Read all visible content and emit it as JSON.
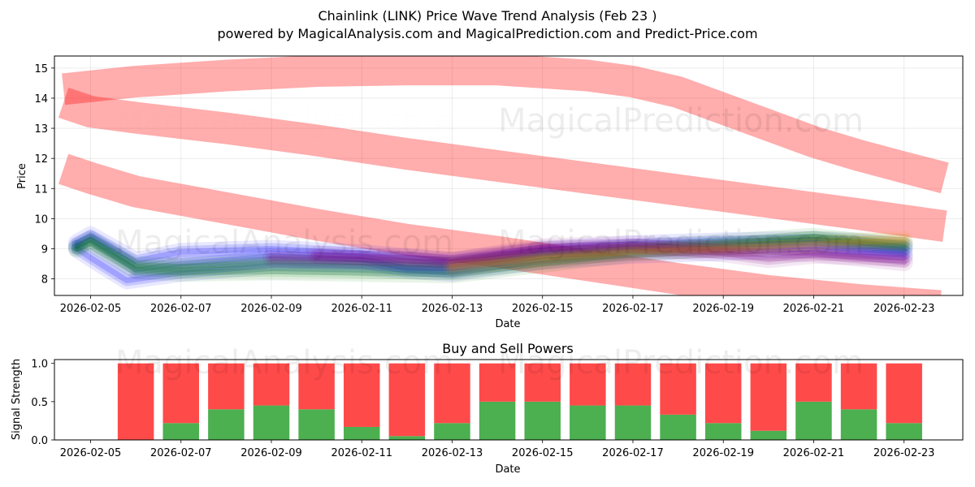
{
  "title": "Chainlink (LINK) Price Wave Trend Analysis (Feb 23 )",
  "subtitle": "powered by MagicalAnalysis.com and MagicalPrediction.com and Predict-Price.com",
  "watermarks": [
    "MagicalAnalysis.com",
    "MagicalPrediction.com"
  ],
  "chart_data": [
    {
      "type": "area",
      "xlabel": "Date",
      "ylabel": "Price",
      "ylim": [
        7.45,
        15.4
      ],
      "xlim": [
        -0.8,
        19.3
      ],
      "grid": true,
      "x_origin_date": "2026-02-05",
      "xticks": [
        {
          "x": 0,
          "label": "2026-02-05"
        },
        {
          "x": 2,
          "label": "2026-02-07"
        },
        {
          "x": 4,
          "label": "2026-02-09"
        },
        {
          "x": 6,
          "label": "2026-02-11"
        },
        {
          "x": 8,
          "label": "2026-02-13"
        },
        {
          "x": 10,
          "label": "2026-02-15"
        },
        {
          "x": 12,
          "label": "2026-02-17"
        },
        {
          "x": 14,
          "label": "2026-02-19"
        },
        {
          "x": 16,
          "label": "2026-02-21"
        },
        {
          "x": 18,
          "label": "2026-02-23"
        }
      ],
      "yticks": [
        8,
        9,
        10,
        11,
        12,
        13,
        14,
        15
      ],
      "bands": [
        {
          "name": "upper-wave",
          "color": "#ff0000",
          "width": 1.05,
          "points": [
            [
              -0.6,
              14.3
            ],
            [
              1,
              14.55
            ],
            [
              3,
              14.75
            ],
            [
              5,
              14.9
            ],
            [
              7,
              14.95
            ],
            [
              9,
              14.95
            ],
            [
              11,
              14.75
            ],
            [
              12,
              14.55
            ],
            [
              13,
              14.2
            ],
            [
              14,
              13.65
            ],
            [
              15,
              13.1
            ],
            [
              16,
              12.55
            ],
            [
              17,
              12.1
            ],
            [
              18,
              11.7
            ],
            [
              18.9,
              11.35
            ]
          ]
        },
        {
          "name": "mid-wave",
          "color": "#ff0000",
          "width": 1.05,
          "points": [
            [
              -0.6,
              13.85
            ],
            [
              0,
              13.55
            ],
            [
              1,
              13.35
            ],
            [
              3,
              13.0
            ],
            [
              5,
              12.6
            ],
            [
              7,
              12.15
            ],
            [
              9,
              11.75
            ],
            [
              11,
              11.35
            ],
            [
              13,
              10.95
            ],
            [
              15,
              10.55
            ],
            [
              17,
              10.15
            ],
            [
              18.9,
              9.75
            ]
          ]
        },
        {
          "name": "lower-wave",
          "color": "#ff0000",
          "width": 1.05,
          "points": [
            [
              -0.6,
              11.65
            ],
            [
              0,
              11.35
            ],
            [
              1,
              10.9
            ],
            [
              3,
              10.35
            ],
            [
              5,
              9.8
            ],
            [
              7,
              9.3
            ],
            [
              9,
              8.9
            ],
            [
              11,
              8.45
            ],
            [
              13,
              8.0
            ],
            [
              15,
              7.6
            ],
            [
              17,
              7.3
            ],
            [
              18.8,
              7.1
            ]
          ]
        }
      ],
      "series": [
        {
          "name": "blue-1",
          "color": "#0000ff",
          "values": [
            [
              -0.3,
              9.1
            ],
            [
              0,
              9.3
            ],
            [
              1,
              8.3
            ],
            [
              2,
              8.5
            ],
            [
              4,
              8.75
            ],
            [
              6,
              8.65
            ],
            [
              7,
              8.35
            ],
            [
              8,
              8.35
            ],
            [
              10,
              8.85
            ],
            [
              12,
              9.0
            ],
            [
              14,
              9.1
            ],
            [
              16,
              9.2
            ],
            [
              18,
              8.95
            ]
          ]
        },
        {
          "name": "blue-2",
          "color": "#0000ff",
          "values": [
            [
              -0.3,
              9.2
            ],
            [
              0,
              9.45
            ],
            [
              1,
              8.6
            ],
            [
              2,
              8.9
            ],
            [
              4,
              9.0
            ],
            [
              6,
              8.85
            ],
            [
              8,
              8.6
            ],
            [
              10,
              8.95
            ],
            [
              12,
              9.15
            ],
            [
              14,
              9.25
            ],
            [
              16,
              9.3
            ],
            [
              18,
              9.1
            ]
          ]
        },
        {
          "name": "blue-3",
          "color": "#0000ff",
          "values": [
            [
              -0.3,
              9.0
            ],
            [
              0,
              8.7
            ],
            [
              0.8,
              7.95
            ],
            [
              2,
              8.2
            ],
            [
              4,
              8.45
            ],
            [
              6,
              8.4
            ],
            [
              8,
              8.2
            ],
            [
              10,
              8.6
            ],
            [
              12,
              8.8
            ],
            [
              14,
              8.9
            ],
            [
              16,
              9.0
            ],
            [
              18,
              8.8
            ]
          ]
        },
        {
          "name": "green-1",
          "color": "#008000",
          "values": [
            [
              -0.3,
              9.0
            ],
            [
              0,
              9.2
            ],
            [
              1,
              8.3
            ],
            [
              2,
              8.2
            ],
            [
              4,
              8.25
            ],
            [
              6,
              8.2
            ],
            [
              8,
              8.15
            ],
            [
              10,
              8.5
            ],
            [
              12,
              8.85
            ],
            [
              14,
              9.05
            ],
            [
              16,
              9.3
            ],
            [
              18,
              9.2
            ]
          ]
        },
        {
          "name": "green-2",
          "color": "#008000",
          "values": [
            [
              -0.3,
              9.05
            ],
            [
              0,
              9.3
            ],
            [
              1,
              8.45
            ],
            [
              2,
              8.4
            ],
            [
              4,
              8.55
            ],
            [
              6,
              8.5
            ],
            [
              8,
              8.45
            ],
            [
              10,
              8.75
            ],
            [
              12,
              9.0
            ],
            [
              14,
              9.2
            ],
            [
              16,
              9.4
            ],
            [
              18,
              9.05
            ]
          ]
        },
        {
          "name": "purple-1",
          "color": "#800080",
          "values": [
            [
              4,
              8.7
            ],
            [
              6,
              8.65
            ],
            [
              8,
              8.55
            ],
            [
              9,
              8.75
            ],
            [
              10,
              9.0
            ],
            [
              12,
              9.05
            ],
            [
              14,
              8.85
            ],
            [
              15,
              8.65
            ],
            [
              16,
              8.8
            ],
            [
              18,
              8.7
            ]
          ]
        },
        {
          "name": "purple-2",
          "color": "#800080",
          "values": [
            [
              5,
              8.8
            ],
            [
              7,
              8.7
            ],
            [
              8,
              8.6
            ],
            [
              10,
              9.05
            ],
            [
              12,
              9.15
            ],
            [
              14,
              8.95
            ],
            [
              16,
              8.85
            ],
            [
              18,
              8.55
            ]
          ]
        },
        {
          "name": "orange-1",
          "color": "#ff8c00",
          "values": [
            [
              8,
              8.4
            ],
            [
              10,
              8.7
            ],
            [
              12,
              8.9
            ],
            [
              14,
              9.0
            ],
            [
              16,
              9.15
            ],
            [
              18,
              9.3
            ]
          ]
        }
      ]
    },
    {
      "type": "bar",
      "title": "Buy and Sell Powers",
      "xlabel": "Date",
      "ylabel": "Signal Strength",
      "ylim": [
        0,
        1.05
      ],
      "xlim": [
        -0.8,
        19.3
      ],
      "x_origin_date": "2026-02-05",
      "xticks": [
        {
          "x": 0,
          "label": "2026-02-05"
        },
        {
          "x": 2,
          "label": "2026-02-07"
        },
        {
          "x": 4,
          "label": "2026-02-09"
        },
        {
          "x": 6,
          "label": "2026-02-11"
        },
        {
          "x": 8,
          "label": "2026-02-13"
        },
        {
          "x": 10,
          "label": "2026-02-15"
        },
        {
          "x": 12,
          "label": "2026-02-17"
        },
        {
          "x": 14,
          "label": "2026-02-19"
        },
        {
          "x": 16,
          "label": "2026-02-21"
        },
        {
          "x": 18,
          "label": "2026-02-23"
        }
      ],
      "yticks": [
        "0.0",
        "0.5",
        "1.0"
      ],
      "x": [
        1,
        2,
        3,
        4,
        5,
        6,
        7,
        8,
        9,
        10,
        11,
        12,
        13,
        14,
        15,
        16,
        17,
        18
      ],
      "series": [
        {
          "name": "Buy",
          "color": "#4caf50",
          "values": [
            0.0,
            0.22,
            0.4,
            0.45,
            0.4,
            0.17,
            0.05,
            0.22,
            0.5,
            0.5,
            0.45,
            0.45,
            0.33,
            0.22,
            0.12,
            0.5,
            0.4,
            0.22
          ]
        },
        {
          "name": "Sell",
          "color": "#ff4a4a",
          "values": [
            1.0,
            0.78,
            0.6,
            0.55,
            0.6,
            0.83,
            0.95,
            0.78,
            0.5,
            0.5,
            0.55,
            0.55,
            0.67,
            0.78,
            0.88,
            0.5,
            0.6,
            0.78
          ]
        }
      ]
    }
  ]
}
